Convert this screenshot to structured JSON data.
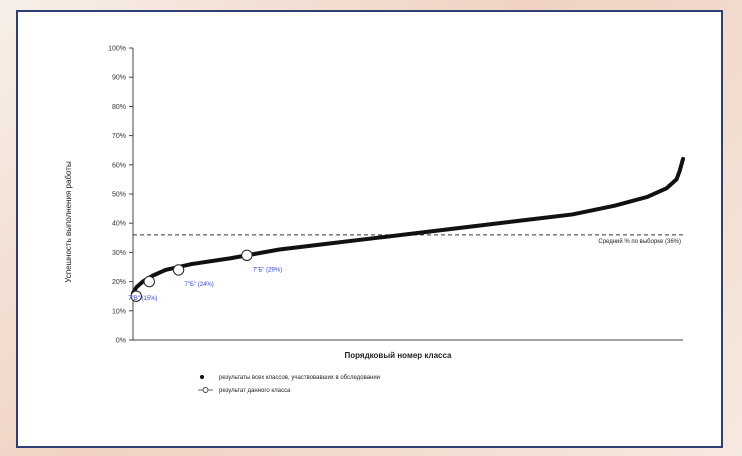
{
  "chart_data": {
    "type": "scatter",
    "title": "",
    "xlabel": "Порядковый номер класса",
    "ylabel": "Успешность выполнения работы",
    "ylim": [
      0,
      100
    ],
    "y_ticks": [
      "0%",
      "10%",
      "20%",
      "30%",
      "40%",
      "50%",
      "60%",
      "70%",
      "80%",
      "90%",
      "100%"
    ],
    "series": [
      {
        "name": "результаты всех классов, участвовавших в обследовании",
        "curve": [
          [
            0,
            16
          ],
          [
            1,
            18
          ],
          [
            3,
            20
          ],
          [
            6,
            22
          ],
          [
            10,
            24
          ],
          [
            18,
            26
          ],
          [
            30,
            28
          ],
          [
            45,
            31
          ],
          [
            60,
            33
          ],
          [
            75,
            35
          ],
          [
            90,
            37
          ],
          [
            105,
            39
          ],
          [
            120,
            41
          ],
          [
            135,
            43
          ],
          [
            148,
            46
          ],
          [
            158,
            49
          ],
          [
            164,
            52
          ],
          [
            167,
            55
          ],
          [
            168,
            58
          ],
          [
            169,
            62
          ]
        ]
      },
      {
        "name": "результат данного класса",
        "points": [
          {
            "x": 1,
            "y": 15,
            "label": "7\"В\" (15%)"
          },
          {
            "x": 5,
            "y": 20,
            "label": ""
          },
          {
            "x": 14,
            "y": 24,
            "label": "7\"Б\" (24%)"
          },
          {
            "x": 35,
            "y": 29,
            "label": "7\"Б\" (29%)"
          }
        ]
      }
    ],
    "reference_line": {
      "y": 36,
      "label": "Средний % по выборке (36%)"
    },
    "legend": {
      "position": "bottom",
      "items": [
        {
          "marker": "dot",
          "label": "результаты всех классов, участвовавших в обследовании"
        },
        {
          "marker": "open-circle",
          "label": "результат данного класса"
        }
      ]
    },
    "grid": false,
    "colors": {
      "series_all": "#111111",
      "class_marker": "#ffffff",
      "label_blue": "#2b3fd1",
      "reference": "#333333",
      "frame": "#2f3f73"
    }
  }
}
